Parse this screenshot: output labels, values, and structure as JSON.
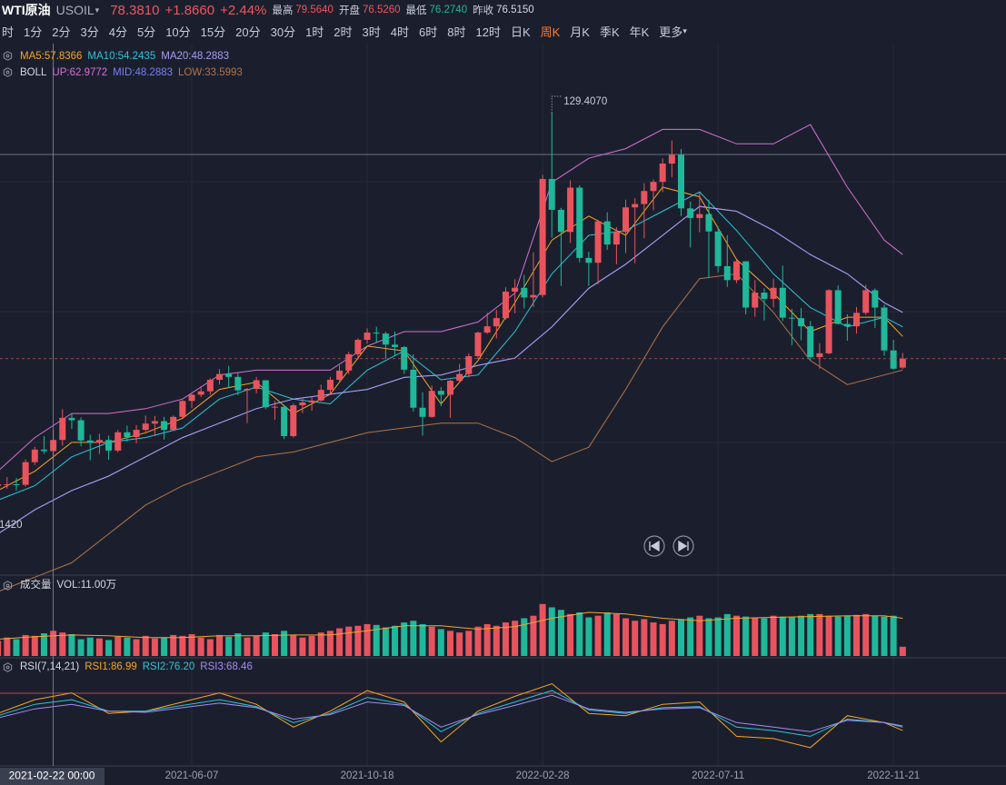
{
  "header": {
    "name": "WTI原油",
    "symbol": "USOIL",
    "price": "78.3810",
    "change": "+1.8660",
    "change_pct": "+2.44%",
    "stats": [
      {
        "label": "最高",
        "value": "79.5640",
        "color": "#f0555f"
      },
      {
        "label": "开盘",
        "value": "76.5260",
        "color": "#f0555f"
      },
      {
        "label": "最低",
        "value": "76.2740",
        "color": "#1fb89a"
      },
      {
        "label": "昨收",
        "value": "76.5150",
        "color": "#d5d8e0"
      }
    ]
  },
  "timeframes": [
    "时",
    "1分",
    "2分",
    "3分",
    "4分",
    "5分",
    "10分",
    "15分",
    "20分",
    "30分",
    "1时",
    "2时",
    "3时",
    "4时",
    "6时",
    "8时",
    "12时",
    "日K",
    "周K",
    "月K",
    "季K",
    "年K",
    "更多"
  ],
  "selected_timeframe": "周K",
  "chart_data": [
    {
      "type": "candlestick",
      "up_color": "#e8545e",
      "down_color": "#1fb89a",
      "ylim": [
        34,
        134
      ],
      "max_label": "129.4070",
      "left_label": "1420",
      "open": [
        52.0,
        52.3,
        52.3,
        52.2,
        56.9,
        59.5,
        59.2,
        61.5,
        66.1,
        65.6,
        61.4,
        60.9,
        61.5,
        59.3,
        63.1,
        62.1,
        63.6,
        64.9,
        65.4,
        63.6,
        66.3,
        69.6,
        70.9,
        71.6,
        74.0,
        75.2,
        74.6,
        71.8,
        72.1,
        73.9,
        68.3,
        68.4,
        62.3,
        68.7,
        69.3,
        69.7,
        71.9,
        74.0,
        75.9,
        79.3,
        82.3,
        83.8,
        83.6,
        81.3,
        80.8,
        76.1,
        68.2,
        66.3,
        71.7,
        70.9,
        73.8,
        75.2,
        78.9,
        83.8,
        85.1,
        86.8,
        92.3,
        93.1,
        91.1,
        91.6,
        115.7,
        109.3,
        104.7,
        113.9,
        99.3,
        98.3,
        106.9,
        102.1,
        104.7,
        109.8,
        110.5,
        113.2,
        115.1,
        118.9,
        120.7,
        109.6,
        107.6,
        108.4,
        104.8,
        97.6,
        94.7,
        98.6,
        89.0,
        92.1,
        90.8,
        93.1,
        86.9,
        86.8,
        85.1,
        78.7,
        79.5,
        92.6,
        85.6,
        85.1,
        87.9,
        92.6,
        89.0,
        80.1,
        76.526
      ],
      "high": [
        53.3,
        53.8,
        53.6,
        57.5,
        60.1,
        62.3,
        63.6,
        67.9,
        67.0,
        66.2,
        62.6,
        62.8,
        62.4,
        63.6,
        64.5,
        64.6,
        66.6,
        66.5,
        66.3,
        66.6,
        69.8,
        71.1,
        72.7,
        74.3,
        76.2,
        76.9,
        75.5,
        72.3,
        74.6,
        73.9,
        69.6,
        68.8,
        69.1,
        70.1,
        70.5,
        73.0,
        74.6,
        77.0,
        79.8,
        82.6,
        84.7,
        85.0,
        84.0,
        84.0,
        81.0,
        79.3,
        71.4,
        72.8,
        72.5,
        74.0,
        77.3,
        79.5,
        84.0,
        87.9,
        88.5,
        93.2,
        94.9,
        95.8,
        100.5,
        116.6,
        129.407,
        109.7,
        115.4,
        114.4,
        100.6,
        107.2,
        108.8,
        105.7,
        111.4,
        111.7,
        114.8,
        115.6,
        120.0,
        123.7,
        121.9,
        111.0,
        112.9,
        111.4,
        105.8,
        104.0,
        98.9,
        98.6,
        94.7,
        93.0,
        95.0,
        97.7,
        88.7,
        88.9,
        86.2,
        81.6,
        92.8,
        93.6,
        87.6,
        89.1,
        93.7,
        93.0,
        89.6,
        82.3,
        79.564
      ],
      "low": [
        51.0,
        51.4,
        51.0,
        51.8,
        56.3,
        58.6,
        57.3,
        60.3,
        63.8,
        60.2,
        57.3,
        58.6,
        57.4,
        58.9,
        61.2,
        60.8,
        63.2,
        62.3,
        61.6,
        63.5,
        66.0,
        68.1,
        70.4,
        70.9,
        73.0,
        72.3,
        70.8,
        65.0,
        71.2,
        67.9,
        65.7,
        61.7,
        62.0,
        67.1,
        67.6,
        69.5,
        70.8,
        73.4,
        75.2,
        78.2,
        81.5,
        81.8,
        78.3,
        79.0,
        75.2,
        67.4,
        62.4,
        66.1,
        68.5,
        66.1,
        73.6,
        74.5,
        78.3,
        83.5,
        82.6,
        86.5,
        87.8,
        88.8,
        89.1,
        91.1,
        103.5,
        93.5,
        102.4,
        98.4,
        93.5,
        93.8,
        101.0,
        98.0,
        100.3,
        98.2,
        103.4,
        109.2,
        113.0,
        116.1,
        108.0,
        101.5,
        104.6,
        95.1,
        96.3,
        93.3,
        94.1,
        87.6,
        87.1,
        86.3,
        89.0,
        86.2,
        81.2,
        82.2,
        78.1,
        76.3,
        79.3,
        85.5,
        82.1,
        83.6,
        87.5,
        84.8,
        79.0,
        76.1,
        76.274
      ],
      "close": [
        52.3,
        52.3,
        52.2,
        56.9,
        59.5,
        59.2,
        61.5,
        66.1,
        65.6,
        61.4,
        60.9,
        61.5,
        59.3,
        63.1,
        62.1,
        63.6,
        64.9,
        65.4,
        63.6,
        66.3,
        69.6,
        70.9,
        71.6,
        74.0,
        75.2,
        74.6,
        71.8,
        72.1,
        73.9,
        68.3,
        68.4,
        62.3,
        68.7,
        69.3,
        69.7,
        71.9,
        74.0,
        75.9,
        79.3,
        82.3,
        83.8,
        83.6,
        81.3,
        80.8,
        76.1,
        68.2,
        66.3,
        71.7,
        70.9,
        73.8,
        75.2,
        78.9,
        83.8,
        85.1,
        86.8,
        92.3,
        93.1,
        91.1,
        91.6,
        115.7,
        109.3,
        104.7,
        113.9,
        99.3,
        98.3,
        106.9,
        102.1,
        104.7,
        109.8,
        110.5,
        113.2,
        115.1,
        118.9,
        120.7,
        109.6,
        107.6,
        108.4,
        104.8,
        97.6,
        94.7,
        98.6,
        89.0,
        92.1,
        90.8,
        93.1,
        86.9,
        86.8,
        85.1,
        78.7,
        79.5,
        92.6,
        85.6,
        85.1,
        87.9,
        92.6,
        89.0,
        80.1,
        76.3,
        78.381
      ],
      "line_x": [
        0,
        4,
        8,
        12,
        16,
        20,
        24,
        28,
        32,
        36,
        40,
        44,
        48,
        52,
        56,
        60,
        64,
        68,
        72,
        76,
        80,
        84,
        88,
        92,
        96,
        98
      ],
      "ma": [
        {
          "name": "MA5:57.8366",
          "color": "#f5a623",
          "values": [
            51,
            55,
            61,
            61,
            63,
            66,
            72,
            73.5,
            67,
            71,
            81,
            80,
            69,
            78,
            90,
            103,
            108,
            104,
            114,
            112,
            99,
            92,
            84,
            87,
            87,
            83
          ]
        },
        {
          "name": "MA10:54.2435",
          "color": "#2ec4d6",
          "values": [
            49,
            52,
            58,
            61,
            62,
            64,
            70,
            72.5,
            70,
            69,
            76,
            80,
            74,
            75,
            84,
            96,
            104,
            105,
            109,
            113,
            105,
            96,
            89,
            85,
            87,
            85
          ]
        },
        {
          "name": "MA20:48.2883",
          "color": "#a99cf0",
          "values": [
            42,
            47,
            51,
            54,
            58,
            62,
            65,
            68,
            70,
            71,
            72,
            74.5,
            75,
            77,
            78.5,
            85,
            93,
            98,
            104,
            110,
            109,
            105,
            100,
            96,
            90,
            88
          ]
        }
      ],
      "boll_name": "BOLL",
      "boll": [
        {
          "name": "UP:62.9772",
          "color": "#d670d6",
          "values": [
            55,
            62,
            67,
            67,
            68,
            70,
            75,
            76,
            76,
            76,
            81,
            84,
            84,
            86,
            92,
            115,
            120,
            122,
            126,
            126,
            123,
            123,
            127,
            114,
            103,
            100
          ]
        },
        {
          "name": "MID:48.2883",
          "color": "#7b7ff0",
          "values": [
            42,
            47,
            51,
            54,
            58,
            62,
            65,
            68,
            70,
            71,
            72,
            74.5,
            75,
            77,
            78.5,
            85,
            93,
            98,
            104,
            110,
            109,
            105,
            100,
            96,
            90,
            88
          ]
        },
        {
          "name": "LOW:33.5993",
          "color": "#b0734a",
          "values": [
            30,
            33,
            36,
            42,
            48,
            52,
            55,
            58,
            59,
            61,
            63,
            64,
            65,
            65,
            62,
            57,
            60,
            72,
            85,
            95,
            96,
            88,
            78,
            73,
            75,
            76
          ]
        }
      ]
    },
    {
      "type": "bar",
      "title": "成交量",
      "label": "VOL:11.00万",
      "ylim": [
        0,
        65
      ],
      "values": [
        18,
        22,
        20,
        25,
        24,
        27,
        30,
        28,
        26,
        20,
        22,
        21,
        19,
        23,
        22,
        20,
        24,
        21,
        22,
        25,
        24,
        26,
        22,
        20,
        25,
        23,
        27,
        22,
        24,
        28,
        26,
        30,
        25,
        22,
        24,
        28,
        30,
        33,
        35,
        36,
        38,
        37,
        34,
        36,
        40,
        42,
        38,
        35,
        32,
        30,
        28,
        30,
        35,
        38,
        36,
        40,
        42,
        45,
        48,
        62,
        58,
        55,
        50,
        52,
        46,
        48,
        52,
        50,
        45,
        42,
        44,
        40,
        38,
        42,
        44,
        46,
        48,
        45,
        46,
        50,
        48,
        47,
        46,
        45,
        48,
        47,
        46,
        48,
        50,
        50,
        48,
        47,
        48,
        49,
        50,
        48,
        47,
        48,
        11
      ],
      "ma_color": "#f5a623",
      "ma_values": [
        20,
        23,
        25,
        24,
        22,
        22,
        24,
        24,
        25,
        25,
        30,
        36,
        36,
        32,
        35,
        45,
        52,
        50,
        45,
        42,
        45,
        46,
        47,
        48,
        48,
        45
      ]
    },
    {
      "type": "line",
      "title": "RSI(7,14,21)",
      "ylim": [
        18,
        92
      ],
      "series": [
        {
          "name": "RSI1:86.99",
          "color": "#f5a623",
          "values": [
            60,
            72,
            78,
            60,
            62,
            70,
            78,
            68,
            48,
            62,
            80,
            70,
            35,
            62,
            75,
            86,
            60,
            58,
            68,
            70,
            40,
            38,
            30,
            58,
            52,
            45
          ]
        },
        {
          "name": "RSI2:76.20",
          "color": "#2ec4d6",
          "values": [
            58,
            68,
            72,
            62,
            62,
            67,
            72,
            66,
            52,
            60,
            74,
            68,
            44,
            60,
            70,
            80,
            63,
            60,
            65,
            66,
            48,
            45,
            40,
            55,
            52,
            48
          ]
        },
        {
          "name": "RSI3:68.46",
          "color": "#a58cf5",
          "values": [
            56,
            64,
            68,
            62,
            61,
            65,
            69,
            65,
            55,
            59,
            70,
            67,
            48,
            59,
            67,
            76,
            64,
            61,
            64,
            65,
            52,
            48,
            44,
            54,
            52,
            49
          ]
        }
      ],
      "xticks": [
        {
          "value": 21,
          "label": "2021-06-07"
        },
        {
          "value": 40,
          "label": "2021-10-18"
        },
        {
          "value": 59,
          "label": "2022-02-28"
        },
        {
          "value": 78,
          "label": "2022-07-11"
        },
        {
          "value": 97,
          "label": "2022-11-21"
        }
      ],
      "cursor": {
        "value": 6,
        "label": "2021-02-22 00:00"
      }
    }
  ]
}
